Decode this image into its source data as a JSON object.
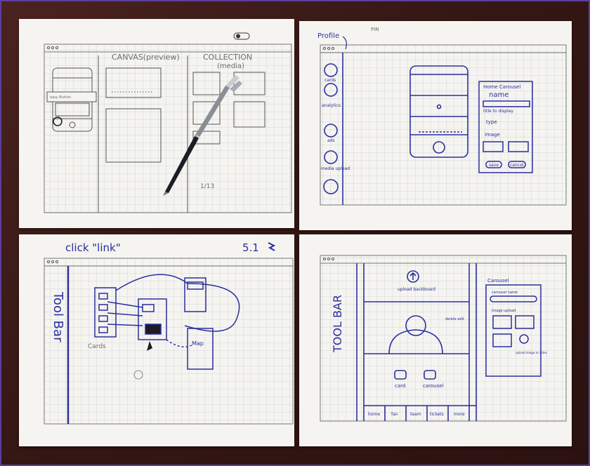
{
  "colors": {
    "desk": "#3b1d1a",
    "paper": "#f5f4f0",
    "grid": "#c9d0d8",
    "ink_blue": "#2b2f9e",
    "pencil_gray": "#6d6d6d",
    "pen_body": "#1c1c22"
  },
  "sheet1": {
    "canvas_label": "CANVAS(preview)",
    "collection_label": "COLLECTION",
    "collection_sub": "(media)",
    "phone_text": "easy Button",
    "corner_note": "1/13"
  },
  "sheet2": {
    "profile_label": "Profile",
    "pin_label": "PIN",
    "sidebar_items": [
      "cards",
      "analytics",
      "ads",
      "media upload"
    ],
    "form_title": "Home Carousel",
    "form_name_label": "name",
    "form_title_field": "title to display",
    "form_type": "type",
    "form_image": "image",
    "save_label": "save",
    "cancel_label": "cancel"
  },
  "sheet3": {
    "header_note": "click \"link\"",
    "version": "5.1",
    "toolbar_label": "Tool Bar",
    "cards_label": "Cards",
    "map_label": "Map"
  },
  "sheet4": {
    "toolbar_label": "TOOL BAR",
    "upload_label": "upload backboard",
    "edit_label": "delete edit",
    "card_label": "card",
    "carousel_label": "carousel",
    "tabs": [
      "home",
      "fan",
      "team",
      "tickets",
      "more"
    ],
    "panel_title": "Carousel",
    "panel_name": "carousel name",
    "panel_upload": "image upload",
    "panel_upload_note": "upload image or video"
  }
}
